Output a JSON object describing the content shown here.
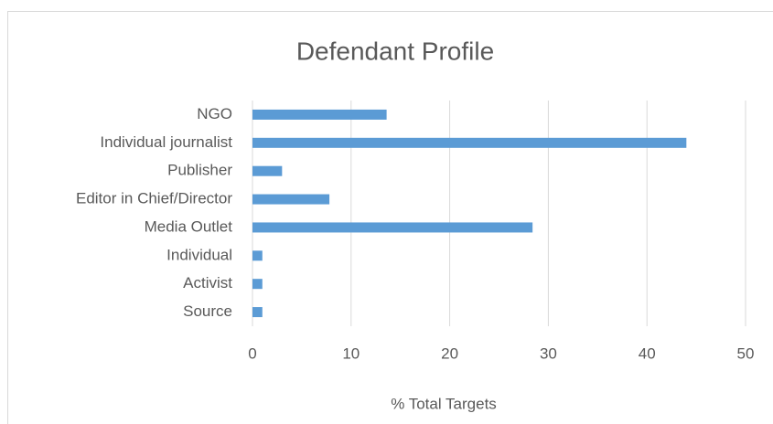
{
  "chart_data": {
    "type": "bar",
    "orientation": "horizontal",
    "title": "Defendant Profile",
    "categories": [
      "NGO",
      "Individual journalist",
      "Publisher",
      "Editor in Chief/Director",
      "Media Outlet",
      "Individual",
      "Activist",
      "Source"
    ],
    "values": [
      13.6,
      44.0,
      3.0,
      7.8,
      28.4,
      1.0,
      1.0,
      1.0
    ],
    "color": "#5b9bd5",
    "xlabel": "% Total Targets",
    "xlim": [
      0,
      50
    ],
    "xticks": [
      0,
      10,
      20,
      30,
      40,
      50
    ],
    "grid": true
  }
}
